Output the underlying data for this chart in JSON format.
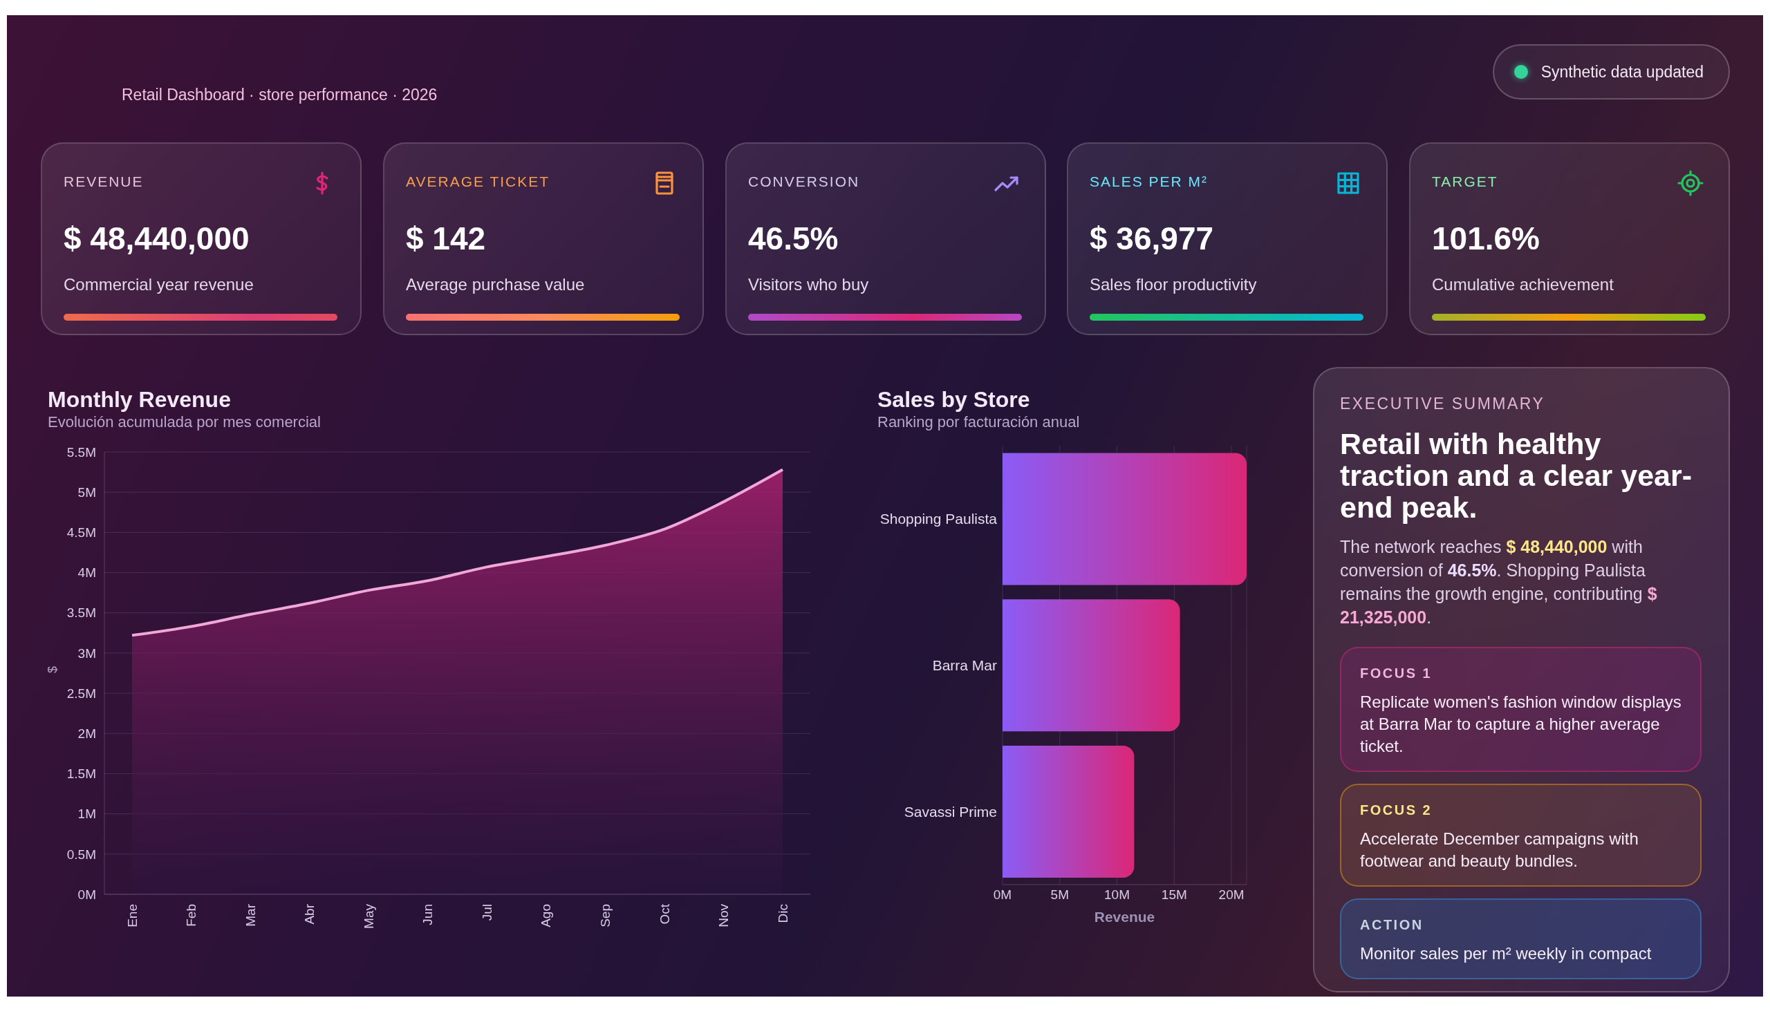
{
  "chart_data": [
    {
      "type": "other",
      "subtitle": "Retail Dashboard · store performance · 2026",
      "annotations": [
        "Synthetic data updated"
      ]
    },
    {
      "type": "other",
      "title": "REVENUE",
      "annotations": [
        "$ 48,440,000",
        "Commercial year revenue"
      ]
    },
    {
      "type": "other",
      "title": "AVERAGE TICKET",
      "annotations": [
        "$ 142",
        "Average purchase value"
      ]
    },
    {
      "type": "other",
      "title": "CONVERSION",
      "annotations": [
        "46.5%",
        "Visitors who buy"
      ]
    },
    {
      "type": "other",
      "title": "SALES PER M²",
      "annotations": [
        "$ 36,977",
        "Sales floor productivity"
      ]
    },
    {
      "type": "other",
      "title": "TARGET",
      "annotations": [
        "101.6%",
        "Cumulative achievement"
      ]
    },
    {
      "type": "area",
      "title": "Monthly Revenue",
      "subtitle": "Evolución acumulada por mes comercial",
      "ylabel": "$",
      "categories": [
        "Ene",
        "Feb",
        "Mar",
        "Abr",
        "May",
        "Jun",
        "Jul",
        "Ago",
        "Sep",
        "Oct",
        "Nov",
        "Dic"
      ],
      "values": [
        3220000,
        3330000,
        3480000,
        3620000,
        3780000,
        3900000,
        4070000,
        4200000,
        4340000,
        4540000,
        4880000,
        5280000
      ],
      "color": "#f1a7d8",
      "ylim": [
        0,
        5500000
      ],
      "yticks": [
        {
          "value": 0,
          "label": "0M"
        },
        {
          "value": 500000,
          "label": "0.5M"
        },
        {
          "value": 1000000,
          "label": "1M"
        },
        {
          "value": 1500000,
          "label": "1.5M"
        },
        {
          "value": 2000000,
          "label": "2M"
        },
        {
          "value": 2500000,
          "label": "2.5M"
        },
        {
          "value": 3000000,
          "label": "3M"
        },
        {
          "value": 3500000,
          "label": "3.5M"
        },
        {
          "value": 4000000,
          "label": "4M"
        },
        {
          "value": 4500000,
          "label": "4.5M"
        },
        {
          "value": 5000000,
          "label": "5M"
        },
        {
          "value": 5500000,
          "label": "5.5M"
        }
      ],
      "grid": "y"
    },
    {
      "type": "bar",
      "orientation": "horizontal",
      "title": "Sales by Store",
      "subtitle": "Ranking por facturación anual",
      "xlabel": "Revenue",
      "categories": [
        "Shopping Paulista",
        "Barra Mar",
        "Savassi Prime"
      ],
      "values": [
        21325000,
        15500000,
        11500000
      ],
      "color": "#db2777",
      "xlim": [
        0,
        21325000
      ],
      "xticks": [
        {
          "value": 0,
          "label": "0M"
        },
        {
          "value": 5000000,
          "label": "5M"
        },
        {
          "value": 10000000,
          "label": "10M"
        },
        {
          "value": 15000000,
          "label": "15M"
        },
        {
          "value": 20000000,
          "label": "20M"
        }
      ],
      "grid": "x"
    },
    {
      "type": "other",
      "title": "EXECUTIVE SUMMARY",
      "subtitle": "Retail with healthy traction and a clear year-end peak.",
      "annotations": [
        "The network reaches $ 48,440,000 with conversion of 46.5%. Shopping Paulista remains the growth engine, contributing $ 21,325,000.",
        "FOCUS 1",
        "Replicate women's fashion window displays at Barra Mar to capture a higher average ticket.",
        "FOCUS 2",
        "Accelerate December campaigns with footwear and beauty bundles.",
        "ACTION",
        "Monitor sales per m² weekly in compact"
      ]
    }
  ]
}
